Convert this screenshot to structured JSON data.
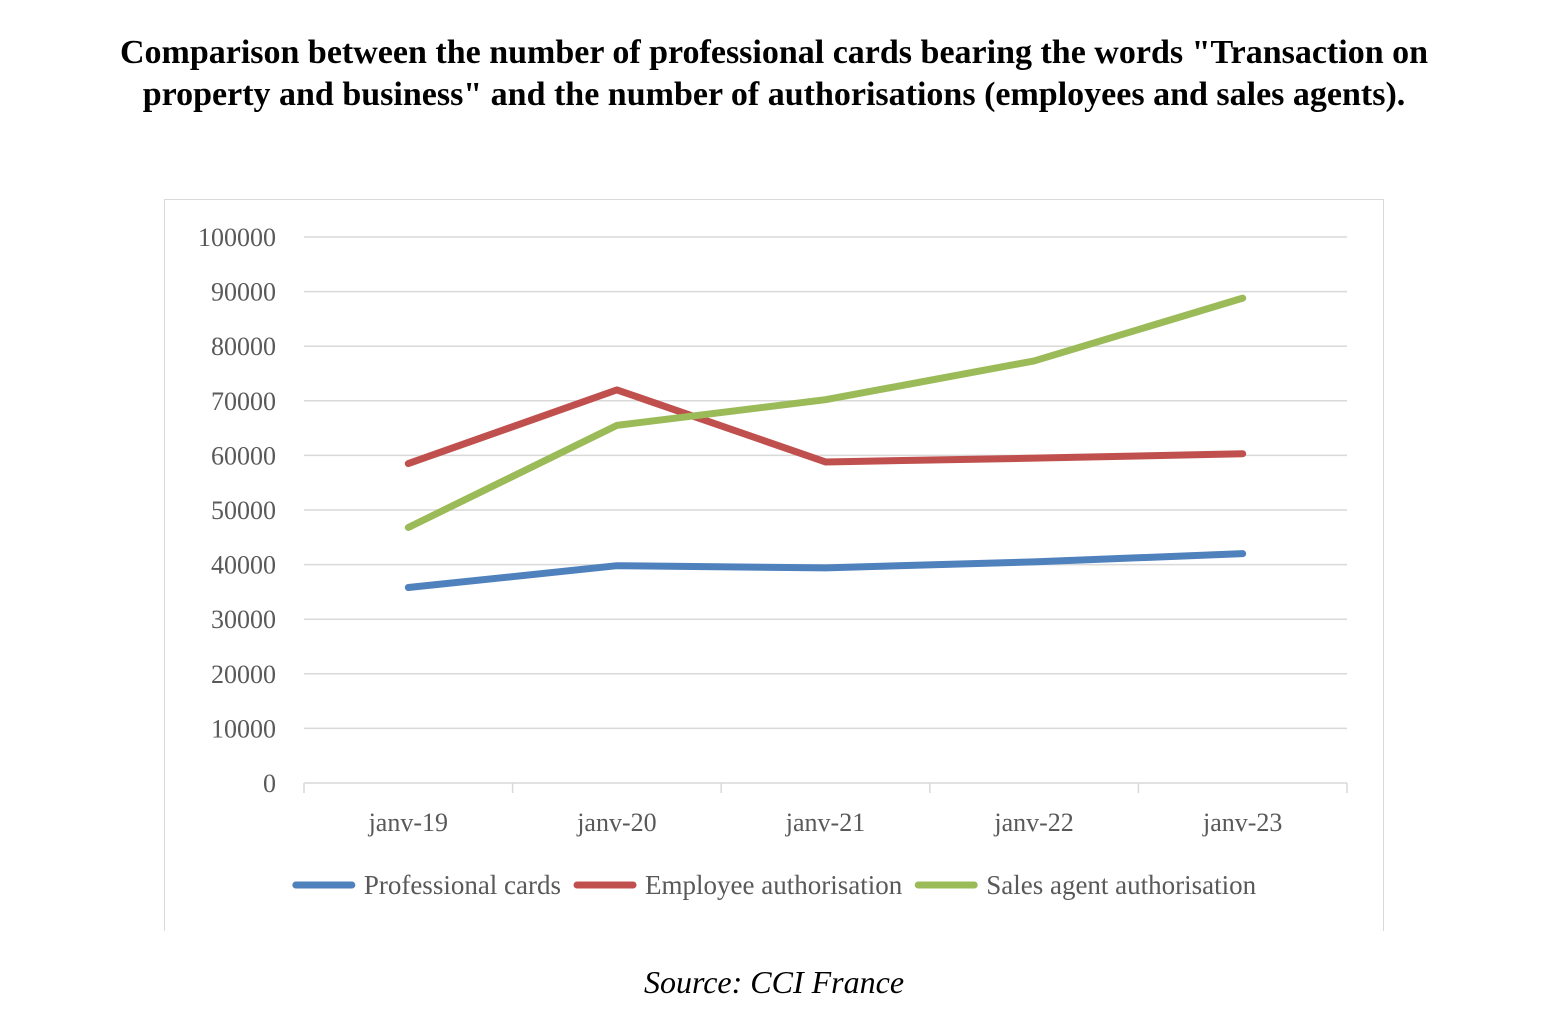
{
  "title_lines": [
    "Comparison between the number of professional cards bearing the words \"Transaction on",
    "property and business\" and the number of authorisations (employees and sales agents)."
  ],
  "source": "Source: CCI France",
  "chart_data": {
    "type": "line",
    "title": "",
    "xlabel": "",
    "ylabel": "",
    "categories": [
      "janv-19",
      "janv-20",
      "janv-21",
      "janv-22",
      "janv-23"
    ],
    "ylim": [
      0,
      100000
    ],
    "yticks": [
      0,
      10000,
      20000,
      30000,
      40000,
      50000,
      60000,
      70000,
      80000,
      90000,
      100000
    ],
    "grid": "horizontal",
    "legend": "bottom",
    "series": [
      {
        "name": "Professional cards",
        "color": "#4f81bd",
        "values": [
          35800,
          39800,
          39400,
          40500,
          42000
        ]
      },
      {
        "name": "Employee authorisation",
        "color": "#c0504d",
        "values": [
          58500,
          72000,
          58800,
          59500,
          60300
        ]
      },
      {
        "name": "Sales agent authorisation",
        "color": "#9bbb59",
        "values": [
          46800,
          65500,
          70200,
          77300,
          88800
        ]
      }
    ]
  }
}
